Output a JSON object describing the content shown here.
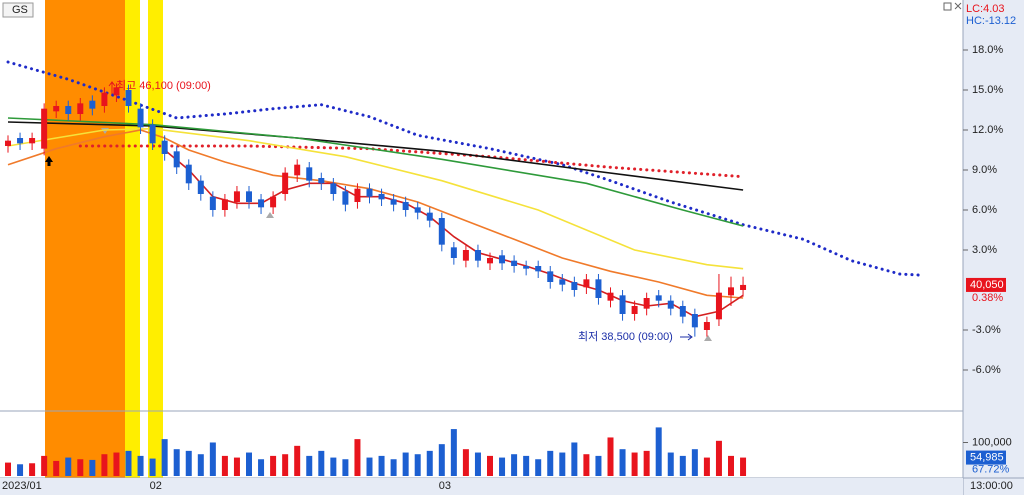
{
  "chart_data": [
    {
      "type": "candlestick",
      "title": "GS",
      "categories": [
        "2023/01",
        null,
        null,
        null,
        null,
        null,
        null,
        null,
        null,
        null,
        null,
        null,
        "02",
        null,
        null,
        null,
        null,
        null,
        null,
        null,
        null,
        null,
        null,
        null,
        null,
        null,
        null,
        null,
        null,
        null,
        null,
        null,
        null,
        null,
        null,
        null,
        "03",
        null,
        null,
        null,
        null,
        null,
        null,
        null,
        null,
        null,
        null,
        null,
        null,
        null,
        null,
        null,
        null,
        null,
        null,
        null,
        null,
        null,
        null,
        null,
        null,
        null
      ],
      "open": [
        10.8,
        11.4,
        11.0,
        10.6,
        13.4,
        13.8,
        13.2,
        14.2,
        13.8,
        14.6,
        15.0,
        13.6,
        12.4,
        11.2,
        10.4,
        9.4,
        8.2,
        7.0,
        6.0,
        6.6,
        7.4,
        6.8,
        6.2,
        7.2,
        8.6,
        9.2,
        8.4,
        8.0,
        7.4,
        6.6,
        7.6,
        7.2,
        6.8,
        6.6,
        6.2,
        5.8,
        5.4,
        3.2,
        2.2,
        3.0,
        2.0,
        2.6,
        2.2,
        1.8,
        1.8,
        1.4,
        0.8,
        0.6,
        0.2,
        0.8,
        -0.8,
        -0.4,
        -1.8,
        -1.4,
        -0.4,
        -0.8,
        -1.2,
        -1.8,
        -3.0,
        -2.2,
        -0.4,
        0.0
      ],
      "high": [
        11.6,
        11.8,
        11.8,
        14.0,
        14.2,
        14.2,
        14.4,
        14.6,
        15.2,
        15.5,
        15.4,
        14.0,
        12.8,
        11.6,
        10.8,
        9.8,
        8.6,
        7.4,
        7.2,
        7.8,
        7.8,
        7.2,
        7.4,
        9.2,
        9.8,
        9.6,
        8.8,
        8.4,
        7.8,
        8.0,
        8.0,
        7.6,
        7.2,
        7.0,
        6.6,
        6.2,
        5.8,
        3.6,
        3.4,
        3.4,
        2.8,
        3.0,
        2.6,
        2.2,
        2.2,
        1.8,
        1.2,
        1.0,
        1.2,
        1.2,
        0.2,
        0.0,
        -0.8,
        -0.2,
        0.0,
        -0.4,
        -0.8,
        -1.4,
        -2.0,
        1.2,
        1.0,
        1.0
      ],
      "low": [
        10.3,
        10.5,
        10.5,
        10.1,
        12.9,
        12.7,
        12.7,
        13.1,
        13.3,
        14.1,
        13.3,
        11.7,
        10.5,
        9.7,
        8.7,
        7.5,
        6.7,
        5.5,
        5.5,
        6.1,
        6.1,
        5.7,
        5.7,
        6.7,
        8.1,
        7.7,
        7.5,
        6.7,
        5.9,
        6.1,
        6.5,
        6.3,
        5.9,
        5.5,
        5.3,
        4.7,
        2.9,
        1.9,
        1.7,
        1.7,
        1.5,
        1.5,
        1.3,
        1.1,
        0.9,
        0.1,
        -0.1,
        -0.5,
        -0.3,
        -1.1,
        -1.3,
        -2.3,
        -2.3,
        -1.9,
        -1.3,
        -1.9,
        -2.5,
        -3.5,
        -3.5,
        -2.7,
        -1.2,
        -0.5
      ],
      "close": [
        11.2,
        11.0,
        11.4,
        13.6,
        13.8,
        13.2,
        14.0,
        13.6,
        14.8,
        15.2,
        13.8,
        12.2,
        11.0,
        10.2,
        9.2,
        8.0,
        7.2,
        6.0,
        6.8,
        7.4,
        6.6,
        6.2,
        7.0,
        8.8,
        9.4,
        8.2,
        8.0,
        7.2,
        6.4,
        7.6,
        7.0,
        6.8,
        6.4,
        6.0,
        5.8,
        5.2,
        3.4,
        2.4,
        3.0,
        2.2,
        2.4,
        2.0,
        1.8,
        1.6,
        1.4,
        0.6,
        0.4,
        0.0,
        0.8,
        -0.6,
        -0.2,
        -1.8,
        -1.2,
        -0.6,
        -0.8,
        -1.4,
        -2.0,
        -2.8,
        -2.4,
        -0.2,
        0.2,
        0.38
      ],
      "up_color": "#e8141d",
      "down_color": "#1c5fd1",
      "ylim": [
        -9,
        21.6
      ],
      "yticks": [
        {
          "value": 18,
          "label": "18.0%"
        },
        {
          "value": 15,
          "label": "15.0%"
        },
        {
          "value": 12,
          "label": "12.0%"
        },
        {
          "value": 9,
          "label": "9.0%"
        },
        {
          "value": 6,
          "label": "6.0%"
        },
        {
          "value": 3,
          "label": "3.0%"
        },
        {
          "value": -3,
          "label": "-3.0%"
        },
        {
          "value": -6,
          "label": "-6.0%"
        }
      ],
      "grid": false,
      "series": [
        {
          "color": "#1f2bc8",
          "style": "dotted",
          "x": [
            0,
            5,
            10,
            14,
            18,
            22,
            26,
            30,
            34,
            40,
            46,
            50,
            55,
            61,
            66,
            70,
            74,
            76
          ],
          "values": [
            17.1,
            15.8,
            14.2,
            12.9,
            13.2,
            13.6,
            13.9,
            13.0,
            11.6,
            10.6,
            9.4,
            8.2,
            6.6,
            4.9,
            3.8,
            2.2,
            1.2,
            1.1
          ]
        },
        {
          "color": "#e0202a",
          "style": "dotted",
          "x": [
            6,
            20,
            30,
            40,
            50,
            61
          ],
          "values": [
            10.8,
            10.8,
            10.6,
            10.0,
            9.2,
            8.5
          ]
        },
        {
          "color": "#111111",
          "style": "solid",
          "x": [
            0,
            12,
            24,
            36,
            48,
            61
          ],
          "values": [
            12.6,
            12.3,
            11.4,
            10.4,
            9.0,
            7.5
          ]
        },
        {
          "color": "#2e9a3a",
          "style": "solid",
          "x": [
            0,
            12,
            24,
            36,
            48,
            56,
            61
          ],
          "values": [
            12.9,
            12.4,
            11.4,
            9.8,
            8.0,
            6.0,
            4.8
          ]
        },
        {
          "color": "#f5e23a",
          "style": "solid",
          "x": [
            0,
            4,
            8,
            12,
            20,
            28,
            36,
            44,
            52,
            58,
            61
          ],
          "values": [
            10.8,
            11.4,
            12.0,
            12.1,
            11.2,
            10.0,
            8.2,
            6.0,
            3.0,
            1.9,
            1.6
          ]
        },
        {
          "color": "#f07a2a",
          "style": "solid",
          "x": [
            0,
            4,
            8,
            11,
            13,
            15,
            18,
            22,
            26,
            30,
            34,
            38,
            42,
            46,
            50,
            54,
            58,
            61
          ],
          "values": [
            9.4,
            10.6,
            11.5,
            12.0,
            11.4,
            10.5,
            9.6,
            8.6,
            8.2,
            7.6,
            6.6,
            5.2,
            3.8,
            2.4,
            1.4,
            0.6,
            -0.4,
            -0.6
          ]
        },
        {
          "color": "#d42020",
          "style": "solid",
          "x": [
            13,
            15,
            17,
            19,
            21,
            23,
            25,
            27,
            29,
            31,
            33,
            35,
            37,
            39,
            41,
            43,
            45,
            47,
            49,
            51,
            53,
            55,
            57,
            59,
            61
          ],
          "values": [
            10.5,
            9.0,
            7.0,
            6.5,
            6.5,
            7.5,
            8.0,
            8.0,
            7.0,
            7.0,
            6.5,
            5.5,
            4.0,
            2.8,
            2.3,
            1.8,
            1.2,
            0.5,
            0.0,
            -0.8,
            -1.2,
            -1.0,
            -2.0,
            -1.6,
            -0.4
          ]
        }
      ],
      "high_label": "최고 46,100 (09:00)",
      "low_label": "최저 38,500 (09:00)",
      "lc_label": "LC:4.03",
      "hc_label": "HC:-13.12",
      "price_label": "40,050",
      "change_label": "0.38%",
      "time_label": "13:00:00"
    },
    {
      "type": "bar",
      "values": [
        40000,
        35000,
        38000,
        60000,
        45000,
        55000,
        50000,
        48000,
        65000,
        70000,
        75000,
        60000,
        52000,
        110000,
        80000,
        75000,
        65000,
        100000,
        60000,
        55000,
        70000,
        50000,
        60000,
        65000,
        90000,
        60000,
        75000,
        55000,
        50000,
        110000,
        55000,
        60000,
        50000,
        70000,
        65000,
        75000,
        95000,
        140000,
        80000,
        70000,
        60000,
        55000,
        65000,
        60000,
        50000,
        75000,
        70000,
        100000,
        65000,
        60000,
        115000,
        80000,
        70000,
        75000,
        145000,
        70000,
        60000,
        80000,
        55000,
        105000,
        60000,
        54985
      ],
      "value_labels": [
        null,
        null,
        null,
        null,
        null,
        null,
        null,
        null,
        null,
        null,
        null,
        null,
        null,
        null,
        null,
        null,
        null,
        null,
        null,
        null,
        null,
        null,
        null,
        null,
        null,
        null,
        null,
        null,
        null,
        null,
        null,
        null,
        null,
        null,
        null,
        null,
        null,
        null,
        null,
        null,
        null,
        null,
        null,
        null,
        null,
        null,
        null,
        null,
        null,
        null,
        null,
        null,
        null,
        null,
        null,
        null,
        null,
        null,
        null,
        null,
        null,
        "54,985"
      ],
      "ylim": [
        0,
        185000
      ],
      "yticks": [
        {
          "value": 100000,
          "label": "100,000"
        }
      ],
      "ratio_label": "67.72%"
    }
  ]
}
